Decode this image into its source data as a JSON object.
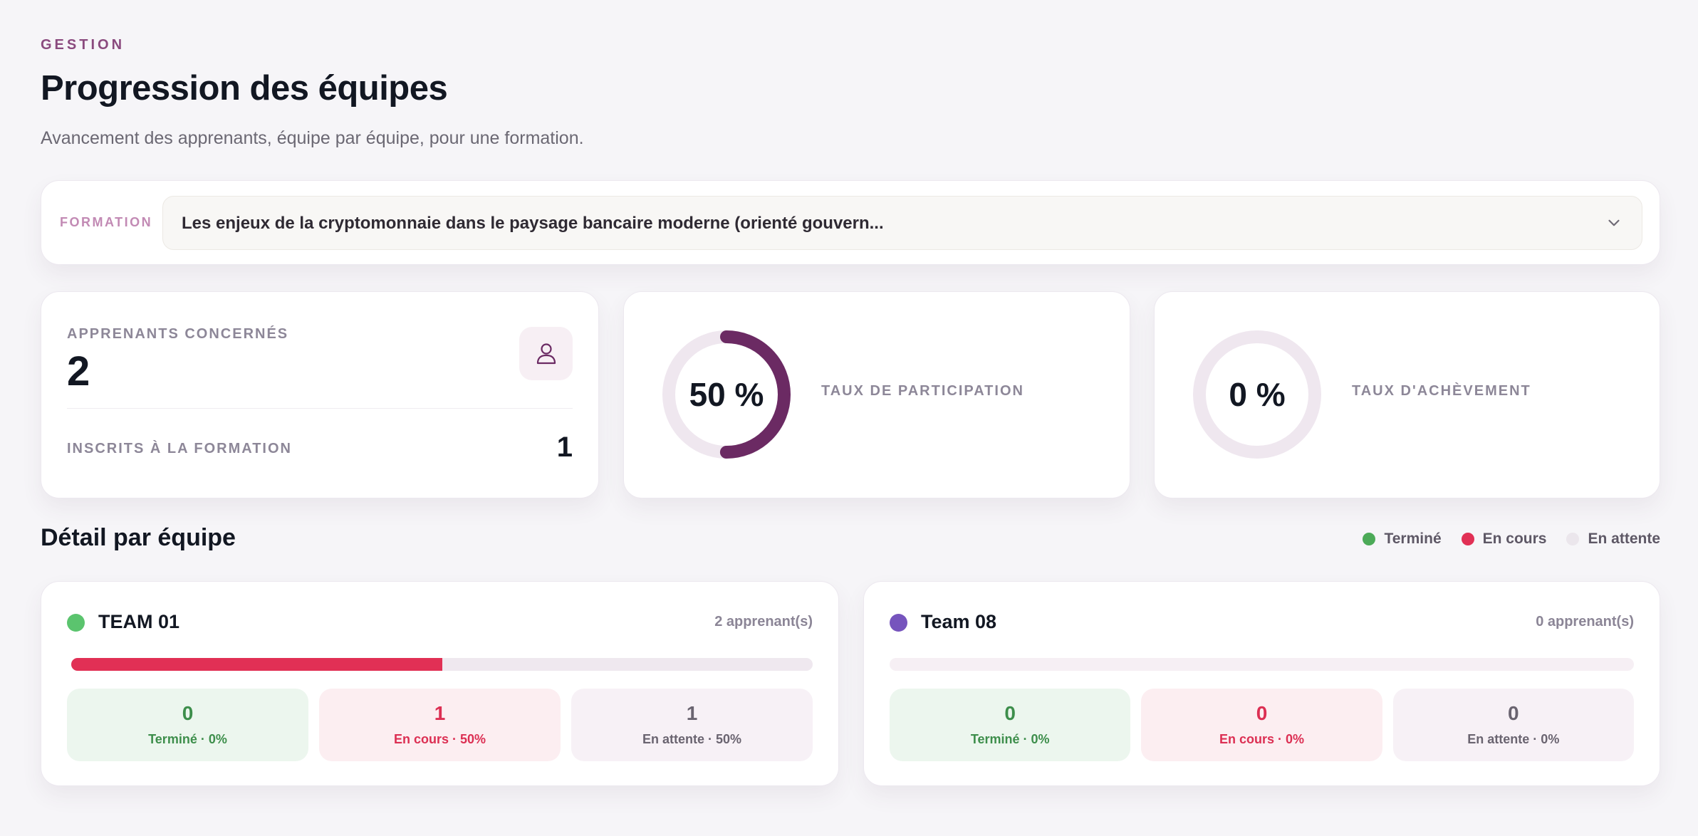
{
  "header": {
    "eyebrow": "GESTION",
    "title": "Progression des équipes",
    "subtitle": "Avancement des apprenants, équipe par équipe, pour une formation."
  },
  "formation": {
    "label": "FORMATION",
    "selected": "Les enjeux de la cryptomonnaie dans le paysage bancaire moderne (orienté gouvern...",
    "icon": "chevron-down-icon"
  },
  "stats": {
    "learners": {
      "label": "APPRENANTS CONCERNÉS",
      "value": "2",
      "icon": "user-icon",
      "enrolled_label": "INSCRITS À LA FORMATION",
      "enrolled_value": "1"
    },
    "participation": {
      "label": "TAUX DE PARTICIPATION",
      "value_text": "50 %",
      "percent": 50,
      "color": "#6b2a63"
    },
    "achievement": {
      "label": "TAUX D'ACHÈVEMENT",
      "value_text": "0 %",
      "percent": 0,
      "color": "#6b2a63"
    }
  },
  "detail": {
    "title": "Détail par équipe",
    "legend": [
      {
        "label": "Terminé",
        "color": "#4caa58"
      },
      {
        "label": "En cours",
        "color": "#e13055"
      },
      {
        "label": "En attente",
        "color": "#ebe6ec"
      }
    ],
    "teams": [
      {
        "name": "TEAM 01",
        "count_text": "2 apprenant(s)",
        "dot_color": "#5bc46e",
        "progress_in_course": 0.5,
        "pills": {
          "done": {
            "value": "0",
            "caption": "Terminé · 0%"
          },
          "in_progress": {
            "value": "1",
            "caption": "En cours · 50%"
          },
          "waiting": {
            "value": "1",
            "caption": "En attente · 50%"
          }
        }
      },
      {
        "name": "Team 08",
        "count_text": "0 apprenant(s)",
        "dot_color": "#7654bd",
        "progress_in_course": 0,
        "pills": {
          "done": {
            "value": "0",
            "caption": "Terminé · 0%"
          },
          "in_progress": {
            "value": "0",
            "caption": "En cours · 0%"
          },
          "waiting": {
            "value": "0",
            "caption": "En attente · 0%"
          }
        }
      }
    ]
  }
}
